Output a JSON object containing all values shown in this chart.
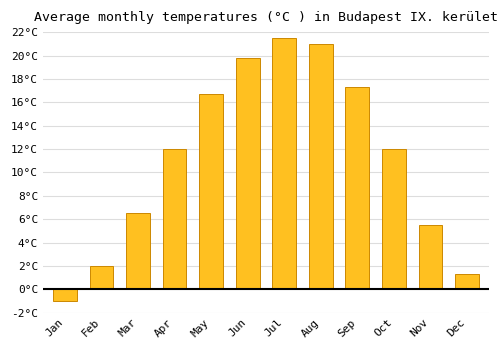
{
  "title": "Average monthly temperatures (°C ) in Budapest IX. kerület",
  "months": [
    "Jan",
    "Feb",
    "Mar",
    "Apr",
    "May",
    "Jun",
    "Jul",
    "Aug",
    "Sep",
    "Oct",
    "Nov",
    "Dec"
  ],
  "values": [
    -1.0,
    2.0,
    6.5,
    12.0,
    16.7,
    19.8,
    21.5,
    21.0,
    17.3,
    12.0,
    5.5,
    1.3
  ],
  "bar_color": "#FFC020",
  "bar_edge_color": "#CC8800",
  "background_color": "#FFFFFF",
  "plot_bg_color": "#FFFFFF",
  "grid_color": "#DDDDDD",
  "ylim": [
    -2,
    22
  ],
  "ytick_step": 2,
  "title_fontsize": 9.5,
  "tick_fontsize": 8,
  "ylabel_suffix": "°C"
}
